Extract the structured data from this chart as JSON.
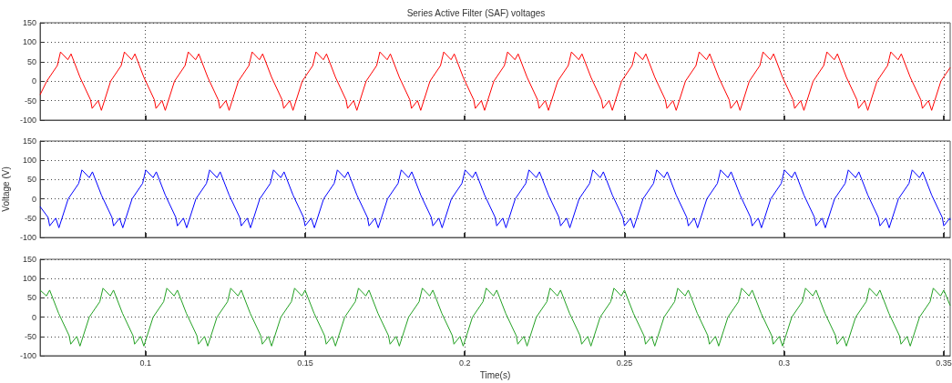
{
  "chart_data": [
    {
      "type": "line",
      "title": "Series Active Filter (SAF) voltages",
      "xlim": [
        0.067,
        0.352
      ],
      "xticks": [
        0.1,
        0.15,
        0.2,
        0.25,
        0.3,
        0.35
      ],
      "ylim": [
        -100,
        150
      ],
      "yticks": [
        -100,
        -50,
        0,
        50,
        100,
        150
      ],
      "grid": true,
      "tick_labels": "y",
      "marker": "none",
      "line_style": "solid",
      "series": [
        {
          "color": "#ff0000",
          "x": [
            0.067,
            0.0691,
            0.0724,
            0.0734,
            0.0757,
            0.0767,
            0.0795,
            0.0828,
            0.0833,
            0.0852,
            0.0862,
            0.0891,
            0.0924,
            0.0934,
            0.0957,
            0.0967,
            0.0995,
            0.1028,
            0.1033,
            0.1052,
            0.1062,
            0.1091,
            0.1124,
            0.1134,
            0.1157,
            0.1167,
            0.1195,
            0.1228,
            0.1233,
            0.1252,
            0.1262,
            0.1291,
            0.1324,
            0.1334,
            0.1357,
            0.1367,
            0.1395,
            0.1428,
            0.1433,
            0.1452,
            0.1462,
            0.1491,
            0.1524,
            0.1534,
            0.1557,
            0.1567,
            0.1595,
            0.1628,
            0.1633,
            0.1652,
            0.1662,
            0.1691,
            0.1724,
            0.1734,
            0.1757,
            0.1767,
            0.1795,
            0.1828,
            0.1833,
            0.1852,
            0.1862,
            0.1891,
            0.1924,
            0.1934,
            0.1957,
            0.1967,
            0.1995,
            0.2028,
            0.2033,
            0.2052,
            0.2062,
            0.2091,
            0.2124,
            0.2134,
            0.2157,
            0.2167,
            0.2195,
            0.2228,
            0.2233,
            0.2252,
            0.2262,
            0.2291,
            0.2324,
            0.2334,
            0.2357,
            0.2367,
            0.2395,
            0.2428,
            0.2433,
            0.2452,
            0.2462,
            0.2491,
            0.2524,
            0.2534,
            0.2557,
            0.2567,
            0.2595,
            0.2628,
            0.2633,
            0.2652,
            0.2662,
            0.2691,
            0.2724,
            0.2734,
            0.2757,
            0.2767,
            0.2795,
            0.2828,
            0.2833,
            0.2852,
            0.2862,
            0.2891,
            0.2924,
            0.2934,
            0.2957,
            0.2967,
            0.2995,
            0.3028,
            0.3033,
            0.3052,
            0.3062,
            0.3091,
            0.3124,
            0.3134,
            0.3157,
            0.3167,
            0.3195,
            0.3228,
            0.3233,
            0.3252,
            0.3262,
            0.3291,
            0.3324,
            0.3334,
            0.3357,
            0.3367,
            0.3395,
            0.3428,
            0.3433,
            0.3452,
            0.3462,
            0.3491,
            0.352
          ],
          "values": [
            -35,
            0,
            40,
            75,
            55,
            70,
            10,
            -48,
            -70,
            -50,
            -75,
            0,
            40,
            75,
            55,
            70,
            10,
            -48,
            -70,
            -50,
            -75,
            0,
            40,
            75,
            55,
            70,
            10,
            -48,
            -70,
            -50,
            -75,
            0,
            40,
            75,
            55,
            70,
            10,
            -48,
            -70,
            -50,
            -75,
            0,
            40,
            75,
            55,
            70,
            10,
            -48,
            -70,
            -50,
            -75,
            0,
            40,
            75,
            55,
            70,
            10,
            -48,
            -70,
            -50,
            -75,
            0,
            40,
            75,
            55,
            70,
            10,
            -48,
            -70,
            -50,
            -75,
            0,
            40,
            75,
            55,
            70,
            10,
            -48,
            -70,
            -50,
            -75,
            0,
            40,
            75,
            55,
            70,
            10,
            -48,
            -70,
            -50,
            -75,
            0,
            40,
            75,
            55,
            70,
            10,
            -48,
            -70,
            -50,
            -75,
            0,
            40,
            75,
            55,
            70,
            10,
            -48,
            -70,
            -50,
            -75,
            0,
            40,
            75,
            55,
            70,
            10,
            -48,
            -70,
            -50,
            -75,
            0,
            40,
            75,
            55,
            70,
            10,
            -48,
            -70,
            -50,
            -75,
            0,
            40,
            75,
            55,
            70,
            10,
            -48,
            -70,
            -50,
            -75,
            0,
            35
          ]
        }
      ]
    },
    {
      "type": "line",
      "ylabel": "Voltage (V)",
      "xlim": [
        0.067,
        0.352
      ],
      "xticks": [
        0.1,
        0.15,
        0.2,
        0.25,
        0.3,
        0.35
      ],
      "ylim": [
        -100,
        150
      ],
      "yticks": [
        -100,
        -50,
        0,
        50,
        100,
        150
      ],
      "grid": true,
      "tick_labels": "y",
      "marker": "none",
      "line_style": "solid",
      "series": [
        {
          "color": "#0000ff",
          "x": [
            0.067,
            0.0695,
            0.07,
            0.0719,
            0.0729,
            0.0758,
            0.0791,
            0.0801,
            0.0824,
            0.0834,
            0.0862,
            0.0895,
            0.09,
            0.0919,
            0.0929,
            0.0958,
            0.0991,
            0.1001,
            0.1024,
            0.1034,
            0.1062,
            0.1095,
            0.11,
            0.1119,
            0.1129,
            0.1158,
            0.1191,
            0.1201,
            0.1224,
            0.1234,
            0.1262,
            0.1295,
            0.13,
            0.1319,
            0.1329,
            0.1358,
            0.1391,
            0.1401,
            0.1424,
            0.1434,
            0.1462,
            0.1495,
            0.15,
            0.1519,
            0.1529,
            0.1558,
            0.1591,
            0.1601,
            0.1624,
            0.1634,
            0.1662,
            0.1695,
            0.17,
            0.1719,
            0.1729,
            0.1758,
            0.1791,
            0.1801,
            0.1824,
            0.1834,
            0.1862,
            0.1895,
            0.19,
            0.1919,
            0.1929,
            0.1958,
            0.1991,
            0.2001,
            0.2024,
            0.2034,
            0.2062,
            0.2095,
            0.21,
            0.2119,
            0.2129,
            0.2158,
            0.2191,
            0.2201,
            0.2224,
            0.2234,
            0.2262,
            0.2295,
            0.23,
            0.2319,
            0.2329,
            0.2358,
            0.2391,
            0.2401,
            0.2424,
            0.2434,
            0.2462,
            0.2495,
            0.25,
            0.2519,
            0.2529,
            0.2558,
            0.2591,
            0.2601,
            0.2624,
            0.2634,
            0.2662,
            0.2695,
            0.27,
            0.2719,
            0.2729,
            0.2758,
            0.2791,
            0.2801,
            0.2824,
            0.2834,
            0.2862,
            0.2895,
            0.29,
            0.2919,
            0.2929,
            0.2958,
            0.2991,
            0.3001,
            0.3024,
            0.3034,
            0.3062,
            0.3095,
            0.31,
            0.3119,
            0.3129,
            0.3158,
            0.3191,
            0.3201,
            0.3224,
            0.3234,
            0.3262,
            0.3295,
            0.33,
            0.3319,
            0.3329,
            0.3358,
            0.3391,
            0.3401,
            0.3424,
            0.3434,
            0.3462,
            0.3495,
            0.35,
            0.3519,
            0.352
          ],
          "values": [
            -20,
            -48,
            -70,
            -50,
            -75,
            0,
            40,
            75,
            55,
            70,
            10,
            -48,
            -70,
            -50,
            -75,
            0,
            40,
            75,
            55,
            70,
            10,
            -48,
            -70,
            -50,
            -75,
            0,
            40,
            75,
            55,
            70,
            10,
            -48,
            -70,
            -50,
            -75,
            0,
            40,
            75,
            55,
            70,
            10,
            -48,
            -70,
            -50,
            -75,
            0,
            40,
            75,
            55,
            70,
            10,
            -48,
            -70,
            -50,
            -75,
            0,
            40,
            75,
            55,
            70,
            10,
            -48,
            -70,
            -50,
            -75,
            0,
            40,
            75,
            55,
            70,
            10,
            -48,
            -70,
            -50,
            -75,
            0,
            40,
            75,
            55,
            70,
            10,
            -48,
            -70,
            -50,
            -75,
            0,
            40,
            75,
            55,
            70,
            10,
            -48,
            -70,
            -50,
            -75,
            0,
            40,
            75,
            55,
            70,
            10,
            -48,
            -70,
            -50,
            -75,
            0,
            40,
            75,
            55,
            70,
            10,
            -48,
            -70,
            -50,
            -75,
            0,
            40,
            75,
            55,
            70,
            10,
            -48,
            -70,
            -50,
            -75,
            0,
            40,
            75,
            55,
            70,
            10,
            -48,
            -70,
            -50,
            -75,
            0,
            40,
            75,
            55,
            70,
            10,
            -48,
            -70,
            -50,
            -55
          ]
        }
      ]
    },
    {
      "type": "line",
      "xlabel": "Time(s)",
      "xlim": [
        0.067,
        0.352
      ],
      "xticks": [
        0.1,
        0.15,
        0.2,
        0.25,
        0.3,
        0.35
      ],
      "ylim": [
        -100,
        150
      ],
      "yticks": [
        -100,
        -50,
        0,
        50,
        100,
        150
      ],
      "grid": true,
      "marker": "none",
      "line_style": "solid",
      "series": [
        {
          "color": "#22a022",
          "x": [
            0.067,
            0.069,
            0.07,
            0.0728,
            0.0761,
            0.0766,
            0.0785,
            0.0795,
            0.0824,
            0.0857,
            0.0867,
            0.089,
            0.09,
            0.0928,
            0.0961,
            0.0966,
            0.0985,
            0.0995,
            0.1024,
            0.1057,
            0.1067,
            0.109,
            0.11,
            0.1128,
            0.1161,
            0.1166,
            0.1185,
            0.1195,
            0.1224,
            0.1257,
            0.1267,
            0.129,
            0.13,
            0.1328,
            0.1361,
            0.1366,
            0.1385,
            0.1395,
            0.1424,
            0.1457,
            0.1467,
            0.149,
            0.15,
            0.1528,
            0.1561,
            0.1566,
            0.1585,
            0.1595,
            0.1624,
            0.1657,
            0.1667,
            0.169,
            0.17,
            0.1728,
            0.1761,
            0.1766,
            0.1785,
            0.1795,
            0.1824,
            0.1857,
            0.1867,
            0.189,
            0.19,
            0.1928,
            0.1961,
            0.1966,
            0.1985,
            0.1995,
            0.2024,
            0.2057,
            0.2067,
            0.209,
            0.21,
            0.2128,
            0.2161,
            0.2166,
            0.2185,
            0.2195,
            0.2224,
            0.2257,
            0.2267,
            0.229,
            0.23,
            0.2328,
            0.2361,
            0.2366,
            0.2385,
            0.2395,
            0.2424,
            0.2457,
            0.2467,
            0.249,
            0.25,
            0.2528,
            0.2561,
            0.2566,
            0.2585,
            0.2595,
            0.2624,
            0.2657,
            0.2667,
            0.269,
            0.27,
            0.2728,
            0.2761,
            0.2766,
            0.2785,
            0.2795,
            0.2824,
            0.2857,
            0.2867,
            0.289,
            0.29,
            0.2928,
            0.2961,
            0.2966,
            0.2985,
            0.2995,
            0.3024,
            0.3057,
            0.3067,
            0.309,
            0.31,
            0.3128,
            0.3161,
            0.3166,
            0.3185,
            0.3195,
            0.3224,
            0.3257,
            0.3267,
            0.329,
            0.33,
            0.3328,
            0.3361,
            0.3366,
            0.3385,
            0.3395,
            0.3424,
            0.3457,
            0.3467,
            0.349,
            0.35,
            0.352
          ],
          "values": [
            70,
            55,
            70,
            10,
            -48,
            -70,
            -50,
            -75,
            0,
            40,
            75,
            55,
            70,
            10,
            -48,
            -70,
            -50,
            -75,
            0,
            40,
            75,
            55,
            70,
            10,
            -48,
            -70,
            -50,
            -75,
            0,
            40,
            75,
            55,
            70,
            10,
            -48,
            -70,
            -50,
            -75,
            0,
            40,
            75,
            55,
            70,
            10,
            -48,
            -70,
            -50,
            -75,
            0,
            40,
            75,
            55,
            70,
            10,
            -48,
            -70,
            -50,
            -75,
            0,
            40,
            75,
            55,
            70,
            10,
            -48,
            -70,
            -50,
            -75,
            0,
            40,
            75,
            55,
            70,
            10,
            -48,
            -70,
            -50,
            -75,
            0,
            40,
            75,
            55,
            70,
            10,
            -48,
            -70,
            -50,
            -75,
            0,
            40,
            75,
            55,
            70,
            10,
            -48,
            -70,
            -50,
            -75,
            0,
            40,
            75,
            55,
            70,
            10,
            -48,
            -70,
            -50,
            -75,
            0,
            40,
            75,
            55,
            70,
            10,
            -48,
            -70,
            -50,
            -75,
            0,
            40,
            75,
            55,
            70,
            10,
            -48,
            -70,
            -50,
            -75,
            0,
            40,
            75,
            55,
            70,
            10,
            -48,
            -70,
            -50,
            -75,
            0,
            40,
            75,
            55,
            70,
            30
          ]
        }
      ]
    }
  ]
}
